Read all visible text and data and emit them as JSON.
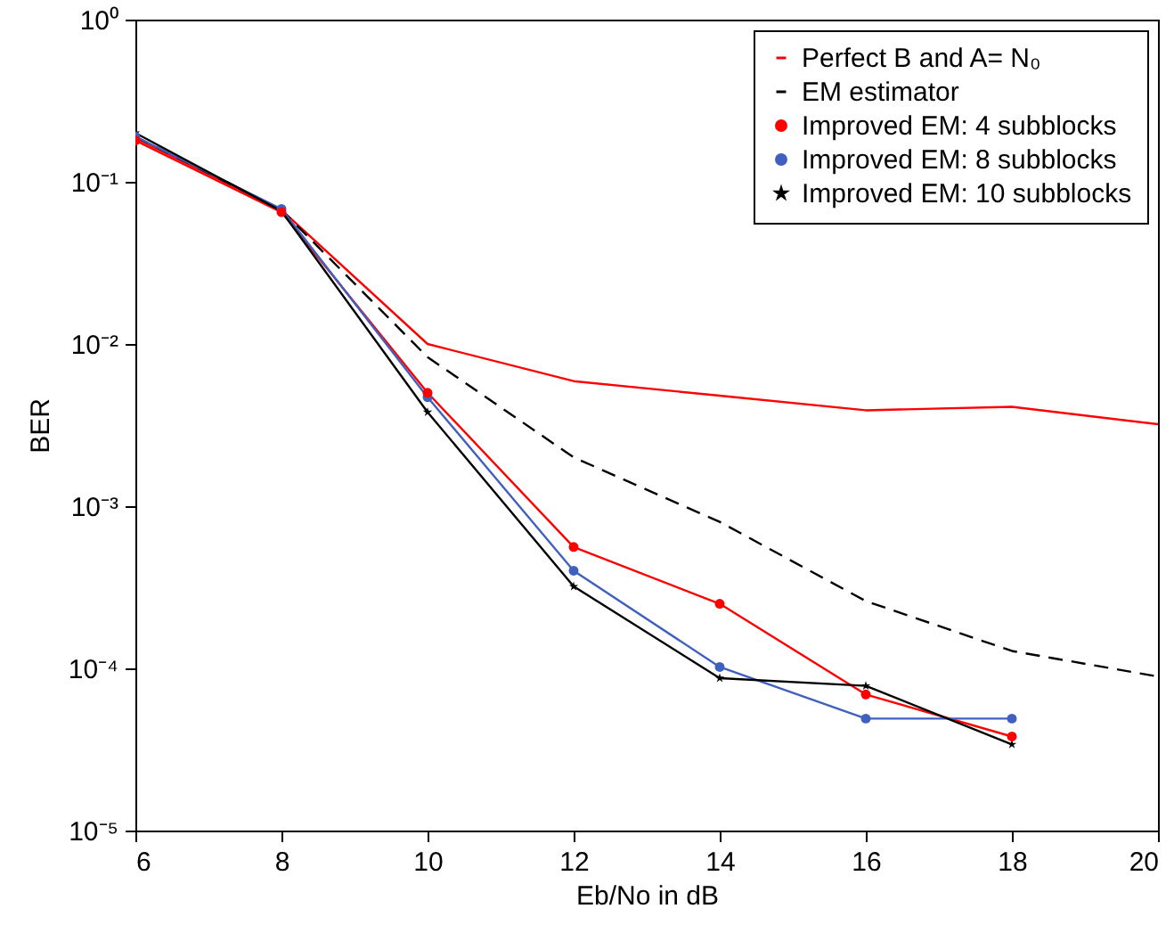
{
  "chart_data": {
    "type": "line",
    "xlabel": "Eb/No in dB",
    "ylabel": "BER",
    "x": [
      6,
      8,
      10,
      12,
      14,
      16,
      18,
      20
    ],
    "series": [
      {
        "name": "Perfect B and A= N₀",
        "color": "#ff0000",
        "line_style": "solid",
        "marker": "none",
        "values": [
          0.186,
          0.067,
          0.01,
          0.0059,
          0.0048,
          0.0039,
          0.0041,
          0.0032
        ]
      },
      {
        "name": "EM estimator",
        "color": "#000000",
        "line_style": "dashed",
        "marker": "none",
        "values": [
          0.19,
          0.067,
          0.0083,
          0.002,
          0.0008,
          0.00026,
          0.000128,
          8.9e-05
        ]
      },
      {
        "name": "Improved EM: 4 subblocks",
        "color": "#ff0000",
        "line_style": "solid",
        "marker": "circle",
        "values": [
          0.18,
          0.065,
          0.005,
          0.00056,
          0.00025,
          6.9e-05,
          3.8e-05,
          null
        ]
      },
      {
        "name": "Improved EM: 8 subblocks",
        "color": "#4060c0",
        "line_style": "solid",
        "marker": "circle",
        "values": [
          0.19,
          0.068,
          0.0047,
          0.0004,
          0.000102,
          4.9e-05,
          4.9e-05,
          null
        ]
      },
      {
        "name": "Improved EM: 10 subblocks",
        "color": "#000000",
        "line_style": "solid",
        "marker": "star",
        "values": [
          0.2,
          0.066,
          0.0038,
          0.00032,
          8.7e-05,
          7.8e-05,
          3.4e-05,
          null
        ]
      }
    ],
    "xlim": [
      6,
      20
    ],
    "xticks": [
      6,
      8,
      10,
      12,
      14,
      16,
      18,
      20
    ],
    "log": "y",
    "ylim": [
      1e-05,
      1
    ],
    "yticks": [
      {
        "value": 1e-05,
        "label": "10⁻⁵"
      },
      {
        "value": 0.0001,
        "label": "10⁻⁴"
      },
      {
        "value": 0.001,
        "label": "10⁻³"
      },
      {
        "value": 0.01,
        "label": "10⁻²"
      },
      {
        "value": 0.1,
        "label": "10⁻¹"
      },
      {
        "value": 1,
        "label": "10⁰"
      }
    ],
    "grid": false,
    "legend": "top right"
  }
}
